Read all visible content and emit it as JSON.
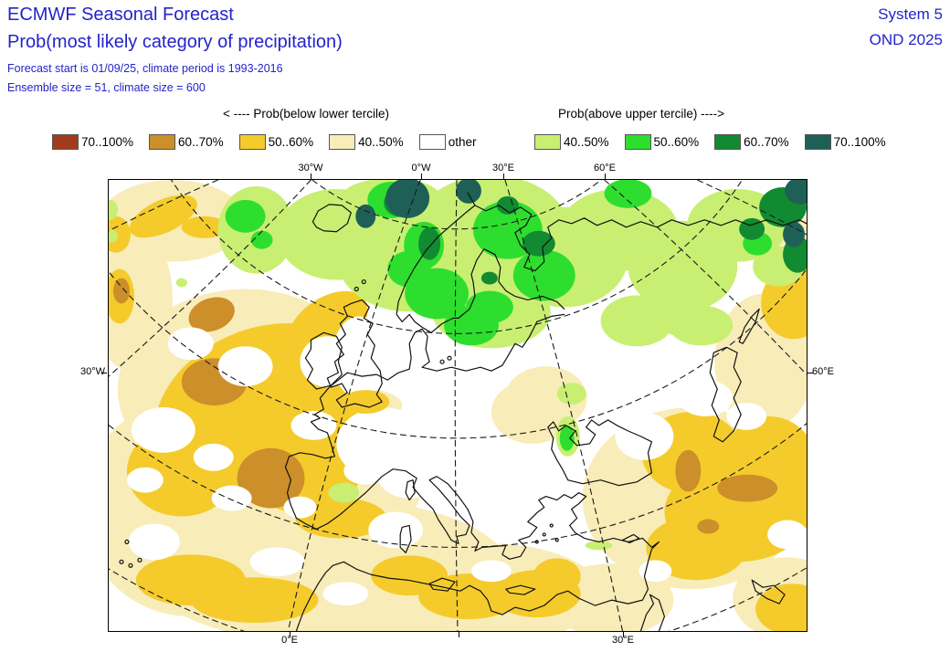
{
  "header": {
    "title": "ECMWF Seasonal Forecast",
    "subtitle": "Prob(most likely category of precipitation)",
    "info_line1": "Forecast start is 01/09/25, climate period is 1993-2016",
    "info_line2": "Ensemble size = 51, climate size = 600",
    "system": "System 5",
    "period": "OND 2025",
    "text_color": "#2323CB"
  },
  "legend": {
    "below_header": "< ---- Prob(below lower tercile)",
    "above_header": "Prob(above upper tercile) ---->",
    "below_items": [
      {
        "label": "70..100%",
        "color": "#A23B1D"
      },
      {
        "label": "60..70%",
        "color": "#CC8F2A"
      },
      {
        "label": "50..60%",
        "color": "#F4CB2B"
      },
      {
        "label": "40..50%",
        "color": "#F8ECB8"
      },
      {
        "label": "other",
        "color": "#FFFFFF"
      }
    ],
    "above_items": [
      {
        "label": "40..50%",
        "color": "#C8EF72"
      },
      {
        "label": "50..60%",
        "color": "#2EDE2E"
      },
      {
        "label": "60..70%",
        "color": "#128A32"
      },
      {
        "label": "70..100%",
        "color": "#1E6056"
      }
    ]
  },
  "map_frame": {
    "top_labels": [
      "30°W",
      "0°W",
      "30°E",
      "60°E"
    ],
    "bottom_labels": [
      "0°E",
      "30°E"
    ],
    "left_label": "30°W",
    "right_label": "60°E"
  },
  "palette": {
    "below_40_50": "#F8ECB8",
    "below_50_60": "#F4CB2B",
    "below_60_70": "#CC8F2A",
    "below_70_100": "#A23B1D",
    "above_40_50": "#C8EF72",
    "above_50_60": "#2EDE2E",
    "above_60_70": "#128A32",
    "above_70_100": "#1E6056",
    "coastline": "#111111",
    "graticule": "#1a1a1a"
  }
}
